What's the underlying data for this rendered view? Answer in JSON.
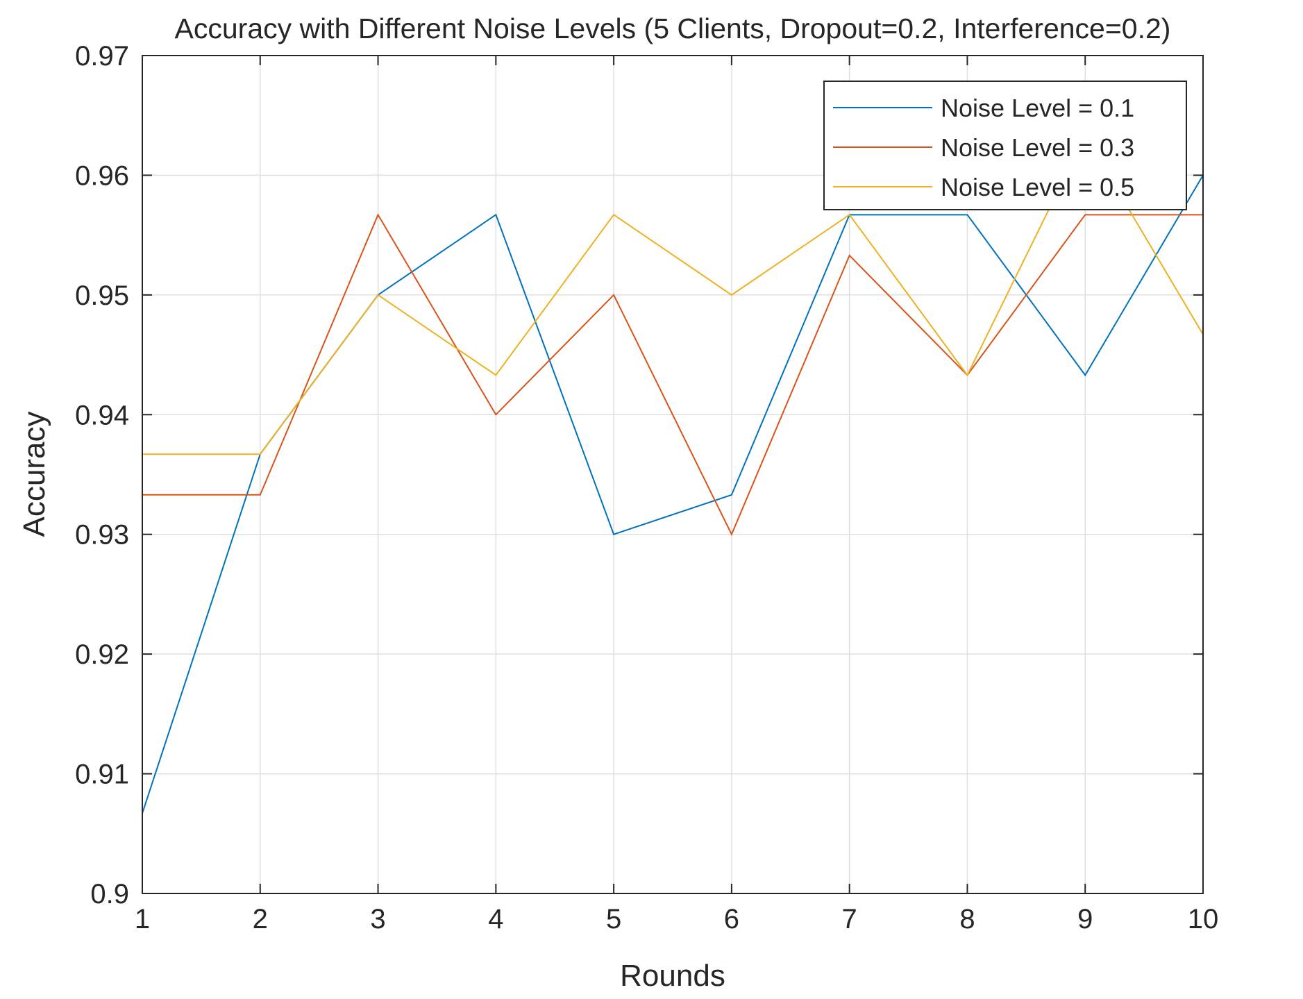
{
  "chart_data": {
    "type": "line",
    "title": "Accuracy with Different Noise Levels (5 Clients, Dropout=0.2, Interference=0.2)",
    "xlabel": "Rounds",
    "ylabel": "Accuracy",
    "x": [
      1,
      2,
      3,
      4,
      5,
      6,
      7,
      8,
      9,
      10
    ],
    "xlim": [
      1,
      10
    ],
    "ylim": [
      0.9,
      0.97
    ],
    "xticks": [
      "1",
      "2",
      "3",
      "4",
      "5",
      "6",
      "7",
      "8",
      "9",
      "10"
    ],
    "yticks": [
      "0.9",
      "0.91",
      "0.92",
      "0.93",
      "0.94",
      "0.95",
      "0.96",
      "0.97"
    ],
    "grid": true,
    "legend_position": "top-right",
    "series": [
      {
        "name": "Noise Level = 0.1",
        "color": "#0072BD",
        "values": [
          0.9067,
          0.9367,
          0.95,
          0.9567,
          0.93,
          0.9333,
          0.9567,
          0.9567,
          0.9433,
          0.96
        ]
      },
      {
        "name": "Noise Level = 0.3",
        "color": "#D95319",
        "values": [
          0.9333,
          0.9333,
          0.9567,
          0.94,
          0.95,
          0.93,
          0.9533,
          0.9433,
          0.9567,
          0.9567
        ]
      },
      {
        "name": "Noise Level = 0.5",
        "color": "#EDB120",
        "values": [
          0.9367,
          0.9367,
          0.95,
          0.9433,
          0.9567,
          0.95,
          0.9567,
          0.9433,
          0.9633,
          0.9467
        ]
      }
    ]
  }
}
